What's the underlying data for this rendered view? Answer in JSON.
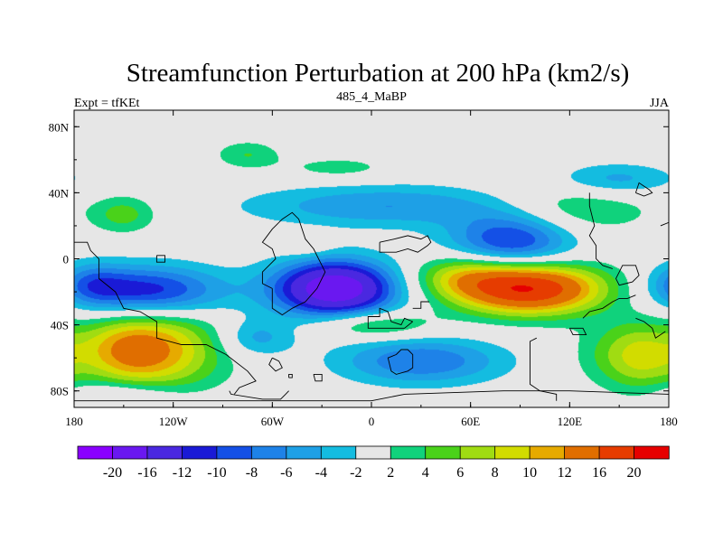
{
  "chart_data": {
    "type": "heatmap",
    "title": "Streamfunction Perturbation at 200 hPa (km2/s)",
    "left_label": "Expt = tfKEt",
    "center_label": "485_4_MaBP",
    "right_label": "JJA",
    "xlim": [
      -180,
      180
    ],
    "ylim": [
      -90,
      90
    ],
    "x_ticks": [
      {
        "value": -180,
        "label": "180"
      },
      {
        "value": -120,
        "label": "120W"
      },
      {
        "value": -60,
        "label": "60W"
      },
      {
        "value": 0,
        "label": "0"
      },
      {
        "value": 60,
        "label": "60E"
      },
      {
        "value": 120,
        "label": "120E"
      },
      {
        "value": 180,
        "label": "180"
      }
    ],
    "y_ticks": [
      {
        "value": 80,
        "label": "80N"
      },
      {
        "value": 40,
        "label": "40N"
      },
      {
        "value": 0,
        "label": "0"
      },
      {
        "value": -40,
        "label": "40S"
      },
      {
        "value": -80,
        "label": "80S"
      }
    ],
    "colorbar": {
      "colors": [
        "#8a00ff",
        "#6a18f0",
        "#4a28e0",
        "#1a1ad6",
        "#1450e6",
        "#1e82e8",
        "#1ea0e6",
        "#14bce0",
        "#e6e6e6",
        "#10d27c",
        "#4ad21a",
        "#a0dc12",
        "#d2dc00",
        "#e6aa00",
        "#e06e00",
        "#e63c00",
        "#e60000"
      ],
      "levels": [
        -20,
        -16,
        -12,
        -10,
        -8,
        -6,
        -4,
        -2,
        2,
        4,
        6,
        8,
        10,
        12,
        16,
        20
      ],
      "labels": [
        "-20",
        "-16",
        "-12",
        "-10",
        "-8",
        "-6",
        "-4",
        "-2",
        "2",
        "4",
        "6",
        "8",
        "10",
        "12",
        "16",
        "20"
      ]
    },
    "features": [
      {
        "lon": 95,
        "lat": -18,
        "peak": 20,
        "sx": 32,
        "sy": 11
      },
      {
        "lon": 55,
        "lat": -10,
        "peak": 6,
        "sx": 22,
        "sy": 9
      },
      {
        "lon": 155,
        "lat": -58,
        "peak": 5,
        "sx": 22,
        "sy": 14
      },
      {
        "lon": -130,
        "lat": -55,
        "peak": 11,
        "sx": 28,
        "sy": 18
      },
      {
        "lon": -150,
        "lat": -55,
        "peak": 5,
        "sx": 18,
        "sy": 14
      },
      {
        "lon": -22,
        "lat": -18,
        "peak": -20,
        "sx": 26,
        "sy": 12
      },
      {
        "lon": -135,
        "lat": -20,
        "peak": -12,
        "sx": 32,
        "sy": 11
      },
      {
        "lon": -170,
        "lat": -15,
        "peak": -5,
        "sx": 15,
        "sy": 9
      },
      {
        "lon": 85,
        "lat": 11,
        "peak": -11,
        "sx": 26,
        "sy": 12
      },
      {
        "lon": 10,
        "lat": 32,
        "peak": -6,
        "sx": 60,
        "sy": 9
      },
      {
        "lon": 30,
        "lat": -62,
        "peak": -8,
        "sx": 35,
        "sy": 10
      },
      {
        "lon": -70,
        "lat": -48,
        "peak": -5,
        "sx": 16,
        "sy": 8
      },
      {
        "lon": 148,
        "lat": 48,
        "peak": -5,
        "sx": 26,
        "sy": 7
      },
      {
        "lon": -150,
        "lat": -82,
        "peak": -4,
        "sx": 25,
        "sy": 6
      },
      {
        "lon": 0,
        "lat": -40,
        "peak": 6,
        "sx": 25,
        "sy": 6
      },
      {
        "lon": 120,
        "lat": 30,
        "peak": 5,
        "sx": 35,
        "sy": 11
      },
      {
        "lon": -75,
        "lat": 63,
        "peak": 4,
        "sx": 14,
        "sy": 6
      },
      {
        "lon": -20,
        "lat": 55,
        "peak": 3,
        "sx": 24,
        "sy": 5
      },
      {
        "lon": -150,
        "lat": 27,
        "peak": 5,
        "sx": 14,
        "sy": 8
      },
      {
        "lon": -40,
        "lat": 9,
        "peak": 3,
        "sx": 11,
        "sy": 5
      },
      {
        "lon": 165,
        "lat": -60,
        "peak": 4,
        "sx": 16,
        "sy": 16
      }
    ],
    "coastlines": [
      [
        [
          -180,
          10
        ],
        [
          -172,
          10
        ],
        [
          -170,
          5
        ],
        [
          -165,
          0
        ],
        [
          -165,
          -12
        ],
        [
          -155,
          -20
        ],
        [
          -150,
          -30
        ],
        [
          -140,
          -32
        ],
        [
          -130,
          -38
        ],
        [
          -130,
          -48
        ],
        [
          -115,
          -52
        ],
        [
          -100,
          -52
        ],
        [
          -88,
          -58
        ],
        [
          -75,
          -68
        ],
        [
          -70,
          -74
        ],
        [
          -80,
          -78
        ],
        [
          -83,
          -82
        ]
      ],
      [
        [
          -60,
          -18
        ],
        [
          -66,
          -15
        ],
        [
          -66,
          -8
        ],
        [
          -60,
          -2
        ],
        [
          -58,
          0
        ],
        [
          -60,
          6
        ],
        [
          -66,
          10
        ],
        [
          -60,
          18
        ],
        [
          -54,
          24
        ],
        [
          -48,
          28
        ],
        [
          -44,
          24
        ],
        [
          -40,
          12
        ],
        [
          -35,
          6
        ],
        [
          -28,
          -8
        ],
        [
          -33,
          -18
        ],
        [
          -40,
          -26
        ],
        [
          -48,
          -30
        ],
        [
          -54,
          -34
        ],
        [
          -60,
          -30
        ],
        [
          -60,
          -18
        ]
      ],
      [
        [
          5,
          10
        ],
        [
          5,
          4
        ],
        [
          10,
          4
        ],
        [
          15,
          4
        ],
        [
          22,
          6
        ],
        [
          28,
          4
        ],
        [
          34,
          8
        ],
        [
          36,
          10
        ],
        [
          34,
          14
        ],
        [
          30,
          12
        ],
        [
          22,
          14
        ],
        [
          14,
          12
        ],
        [
          5,
          10
        ]
      ],
      [
        [
          25,
          -38
        ],
        [
          20,
          -42
        ],
        [
          -2,
          -42
        ],
        [
          -2,
          -35
        ],
        [
          5,
          -35
        ],
        [
          5,
          -30
        ],
        [
          10,
          -32
        ],
        [
          12,
          -38
        ],
        [
          18,
          -40
        ],
        [
          20,
          -36
        ],
        [
          25,
          -38
        ]
      ],
      [
        [
          15,
          -58
        ],
        [
          18,
          -55
        ],
        [
          22,
          -55
        ],
        [
          25,
          -58
        ],
        [
          25,
          -66
        ],
        [
          22,
          -68
        ],
        [
          15,
          -70
        ],
        [
          12,
          -68
        ],
        [
          10,
          -60
        ],
        [
          15,
          -58
        ]
      ],
      [
        [
          -60,
          -60
        ],
        [
          -62,
          -64
        ],
        [
          -58,
          -68
        ],
        [
          -54,
          -66
        ],
        [
          -56,
          -62
        ],
        [
          -60,
          -60
        ]
      ],
      [
        [
          -35,
          -70
        ],
        [
          -34,
          -74
        ],
        [
          -30,
          -74
        ],
        [
          -30,
          -70
        ],
        [
          -35,
          -70
        ]
      ],
      [
        [
          -180,
          -86
        ],
        [
          -100,
          -86
        ],
        [
          -20,
          -86
        ],
        [
          0,
          -86
        ],
        [
          20,
          -82
        ],
        [
          80,
          -80
        ],
        [
          120,
          -80
        ],
        [
          180,
          -82
        ]
      ],
      [
        [
          -86,
          -80
        ],
        [
          -85,
          -82
        ],
        [
          -66,
          -85
        ],
        [
          -55,
          -85
        ],
        [
          -52,
          -82
        ],
        [
          -50,
          -80
        ]
      ],
      [
        [
          100,
          -48
        ],
        [
          96,
          -50
        ],
        [
          96,
          -76
        ],
        [
          102,
          -80
        ],
        [
          112,
          -82
        ],
        [
          112,
          -86
        ]
      ],
      [
        [
          120,
          -42
        ],
        [
          122,
          -46
        ],
        [
          130,
          -46
        ],
        [
          128,
          -42
        ],
        [
          120,
          -42
        ]
      ],
      [
        [
          150,
          -8
        ],
        [
          148,
          -12
        ],
        [
          150,
          -16
        ],
        [
          158,
          -14
        ],
        [
          162,
          -10
        ],
        [
          160,
          -4
        ],
        [
          152,
          -4
        ],
        [
          150,
          -8
        ]
      ],
      [
        [
          132,
          40
        ],
        [
          132,
          32
        ],
        [
          135,
          20
        ],
        [
          132,
          14
        ],
        [
          136,
          8
        ],
        [
          136,
          0
        ],
        [
          140,
          -4
        ],
        [
          146,
          -6
        ]
      ],
      [
        [
          160,
          40
        ],
        [
          162,
          46
        ],
        [
          165,
          44
        ],
        [
          168,
          42
        ],
        [
          170,
          40
        ],
        [
          165,
          38
        ],
        [
          160,
          40
        ]
      ],
      [
        [
          175,
          20
        ],
        [
          180,
          22
        ]
      ],
      [
        [
          128,
          -36
        ],
        [
          132,
          -32
        ],
        [
          140,
          -30
        ],
        [
          146,
          -26
        ],
        [
          150,
          -24
        ],
        [
          155,
          -24
        ],
        [
          160,
          -22
        ]
      ],
      [
        [
          160,
          -36
        ],
        [
          165,
          -38
        ],
        [
          170,
          -42
        ],
        [
          172,
          -48
        ],
        [
          178,
          -44
        ]
      ],
      [
        [
          25,
          -30
        ],
        [
          30,
          -30
        ],
        [
          30,
          -26
        ],
        [
          35,
          -26
        ]
      ],
      [
        [
          -130,
          2
        ],
        [
          -125,
          2
        ],
        [
          -125,
          -2
        ],
        [
          -130,
          -2
        ],
        [
          -130,
          2
        ]
      ],
      [
        [
          -50,
          -72
        ],
        [
          -48,
          -72
        ],
        [
          -48,
          -70
        ],
        [
          -50,
          -70
        ],
        [
          -50,
          -72
        ]
      ]
    ]
  }
}
